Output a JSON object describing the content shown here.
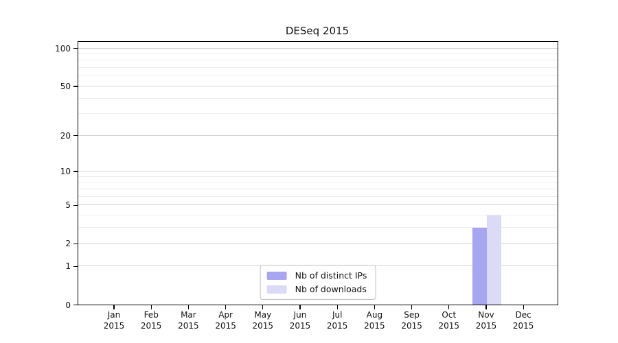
{
  "page": {
    "title": "DESeq 2015"
  },
  "chart_data": {
    "type": "bar",
    "title": "DESeq 2015",
    "scale": "log1p",
    "ylim": [
      0,
      100
    ],
    "grid": true,
    "legend_position": "lower center",
    "y_ticks": [
      0,
      1,
      2,
      5,
      10,
      20,
      50,
      100
    ],
    "y_minor_ticks": [
      3,
      4,
      6,
      7,
      8,
      9,
      30,
      40,
      60,
      70,
      80,
      90
    ],
    "categories": [
      {
        "month": "Jan",
        "year": "2015"
      },
      {
        "month": "Feb",
        "year": "2015"
      },
      {
        "month": "Mar",
        "year": "2015"
      },
      {
        "month": "Apr",
        "year": "2015"
      },
      {
        "month": "May",
        "year": "2015"
      },
      {
        "month": "Jun",
        "year": "2015"
      },
      {
        "month": "Jul",
        "year": "2015"
      },
      {
        "month": "Aug",
        "year": "2015"
      },
      {
        "month": "Sep",
        "year": "2015"
      },
      {
        "month": "Oct",
        "year": "2015"
      },
      {
        "month": "Nov",
        "year": "2015"
      },
      {
        "month": "Dec",
        "year": "2015"
      }
    ],
    "series": [
      {
        "name": "Nb of distinct IPs",
        "color": "#a6a6f1",
        "values": [
          0,
          0,
          0,
          0,
          0,
          0,
          0,
          0,
          0,
          0,
          3,
          0
        ]
      },
      {
        "name": "Nb of downloads",
        "color": "#dbdbf8",
        "values": [
          0,
          0,
          0,
          0,
          0,
          0,
          0,
          0,
          0,
          0,
          4,
          0
        ]
      }
    ]
  },
  "colors": {
    "grid_major": "#d4d4d4",
    "grid_minor": "#ededed",
    "axis": "#000000",
    "legend_border": "#bfbfbf",
    "background": "#ffffff",
    "text": "#111111"
  }
}
